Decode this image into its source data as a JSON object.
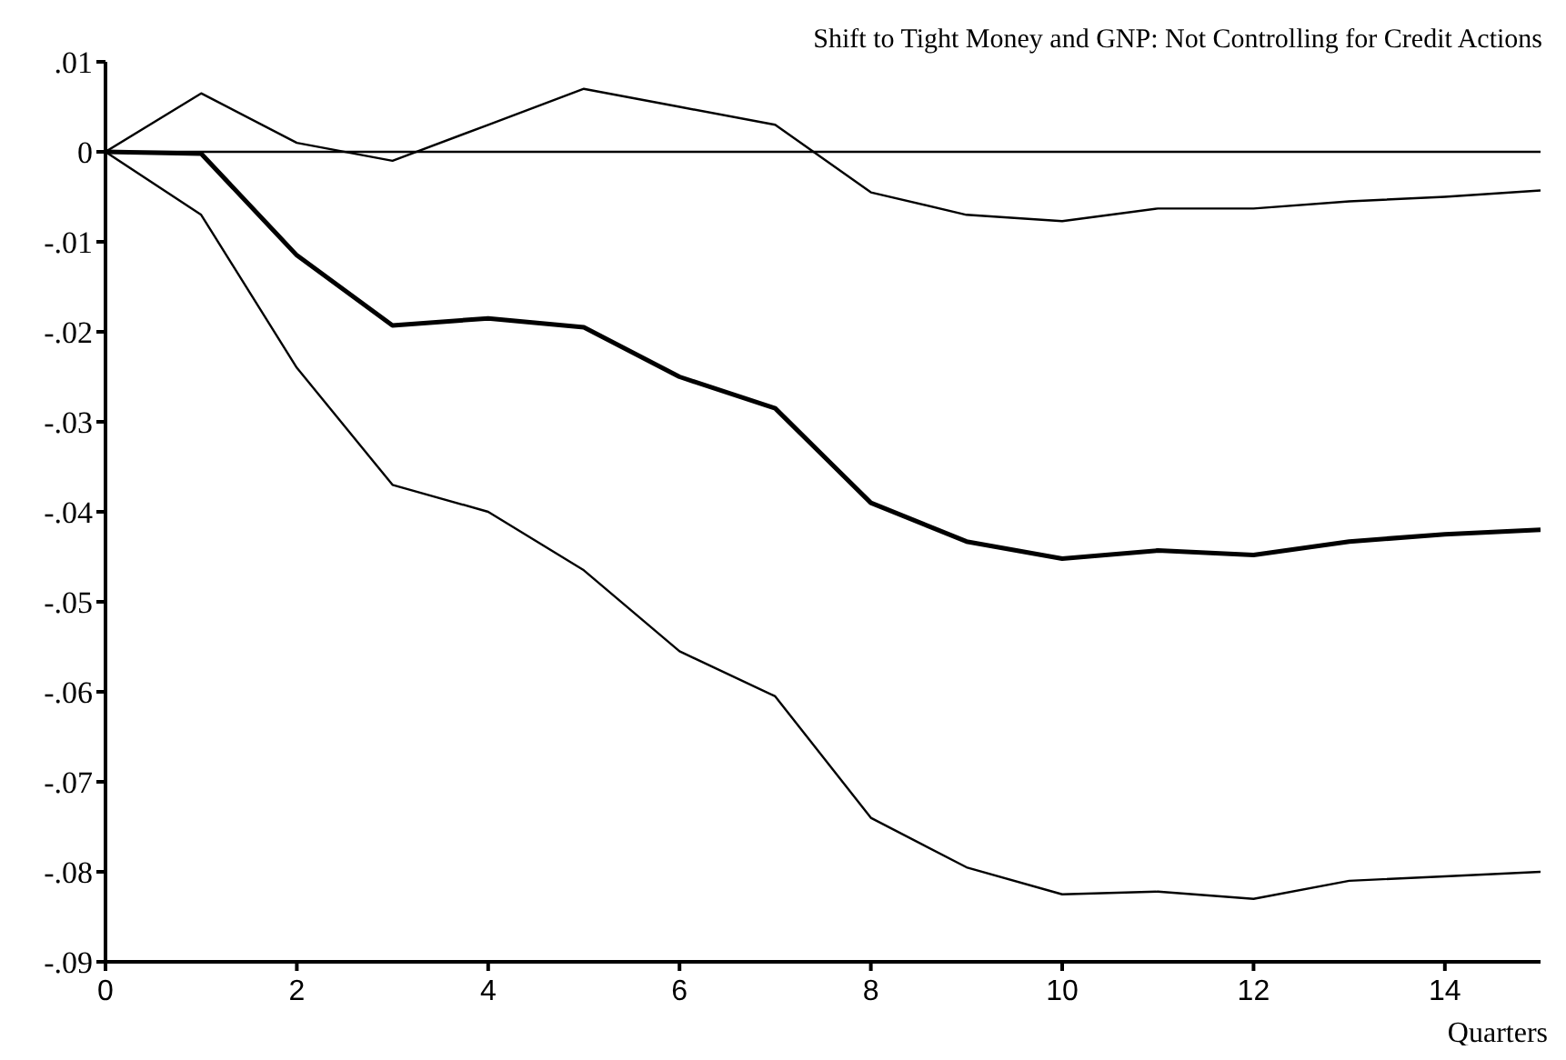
{
  "chart_data": {
    "type": "line",
    "title": "Shift to Tight Money and GNP:  Not Controlling for Credit Actions",
    "xlabel": "Quarters",
    "x": [
      0,
      1,
      2,
      3,
      4,
      5,
      6,
      7,
      8,
      9,
      10,
      11,
      12,
      13,
      14,
      15
    ],
    "series": [
      {
        "color": "#000000",
        "values": [
          0,
          0.0065,
          0.001,
          -0.001,
          0.003,
          0.007,
          0.005,
          0.003,
          -0.0045,
          -0.007,
          -0.0077,
          -0.0063,
          -0.0063,
          -0.0055,
          -0.005,
          -0.0043
        ]
      },
      {
        "color": "#000000",
        "values": [
          0,
          -0.0002,
          -0.0115,
          -0.0193,
          -0.0185,
          -0.0195,
          -0.025,
          -0.0285,
          -0.039,
          -0.0433,
          -0.0452,
          -0.0443,
          -0.0448,
          -0.0433,
          -0.0425,
          -0.042
        ]
      },
      {
        "color": "#000000",
        "values": [
          0,
          -0.007,
          -0.024,
          -0.037,
          -0.04,
          -0.0465,
          -0.0555,
          -0.0605,
          -0.074,
          -0.0795,
          -0.0825,
          -0.0822,
          -0.083,
          -0.081,
          -0.0805,
          -0.08
        ]
      }
    ],
    "xlim": [
      0,
      15
    ],
    "xticks": [
      0,
      2,
      4,
      6,
      8,
      10,
      12,
      14
    ],
    "ylim": [
      -0.09,
      0.01
    ],
    "yticks": [
      {
        "value": 0.01,
        "label": ".01"
      },
      {
        "value": 0,
        "label": "0"
      },
      {
        "value": -0.01,
        "label": "-.01"
      },
      {
        "value": -0.02,
        "label": "-.02"
      },
      {
        "value": -0.03,
        "label": "-.03"
      },
      {
        "value": -0.04,
        "label": "-.04"
      },
      {
        "value": -0.05,
        "label": "-.05"
      },
      {
        "value": -0.06,
        "label": "-.06"
      },
      {
        "value": -0.07,
        "label": "-.07"
      },
      {
        "value": -0.08,
        "label": "-.08"
      },
      {
        "value": -0.09,
        "label": "-.09"
      }
    ],
    "ref_lines": [
      {
        "axis": "y",
        "value": 0,
        "color": "#000000"
      }
    ],
    "grid": false,
    "marker": "none",
    "line_style": "solid"
  }
}
